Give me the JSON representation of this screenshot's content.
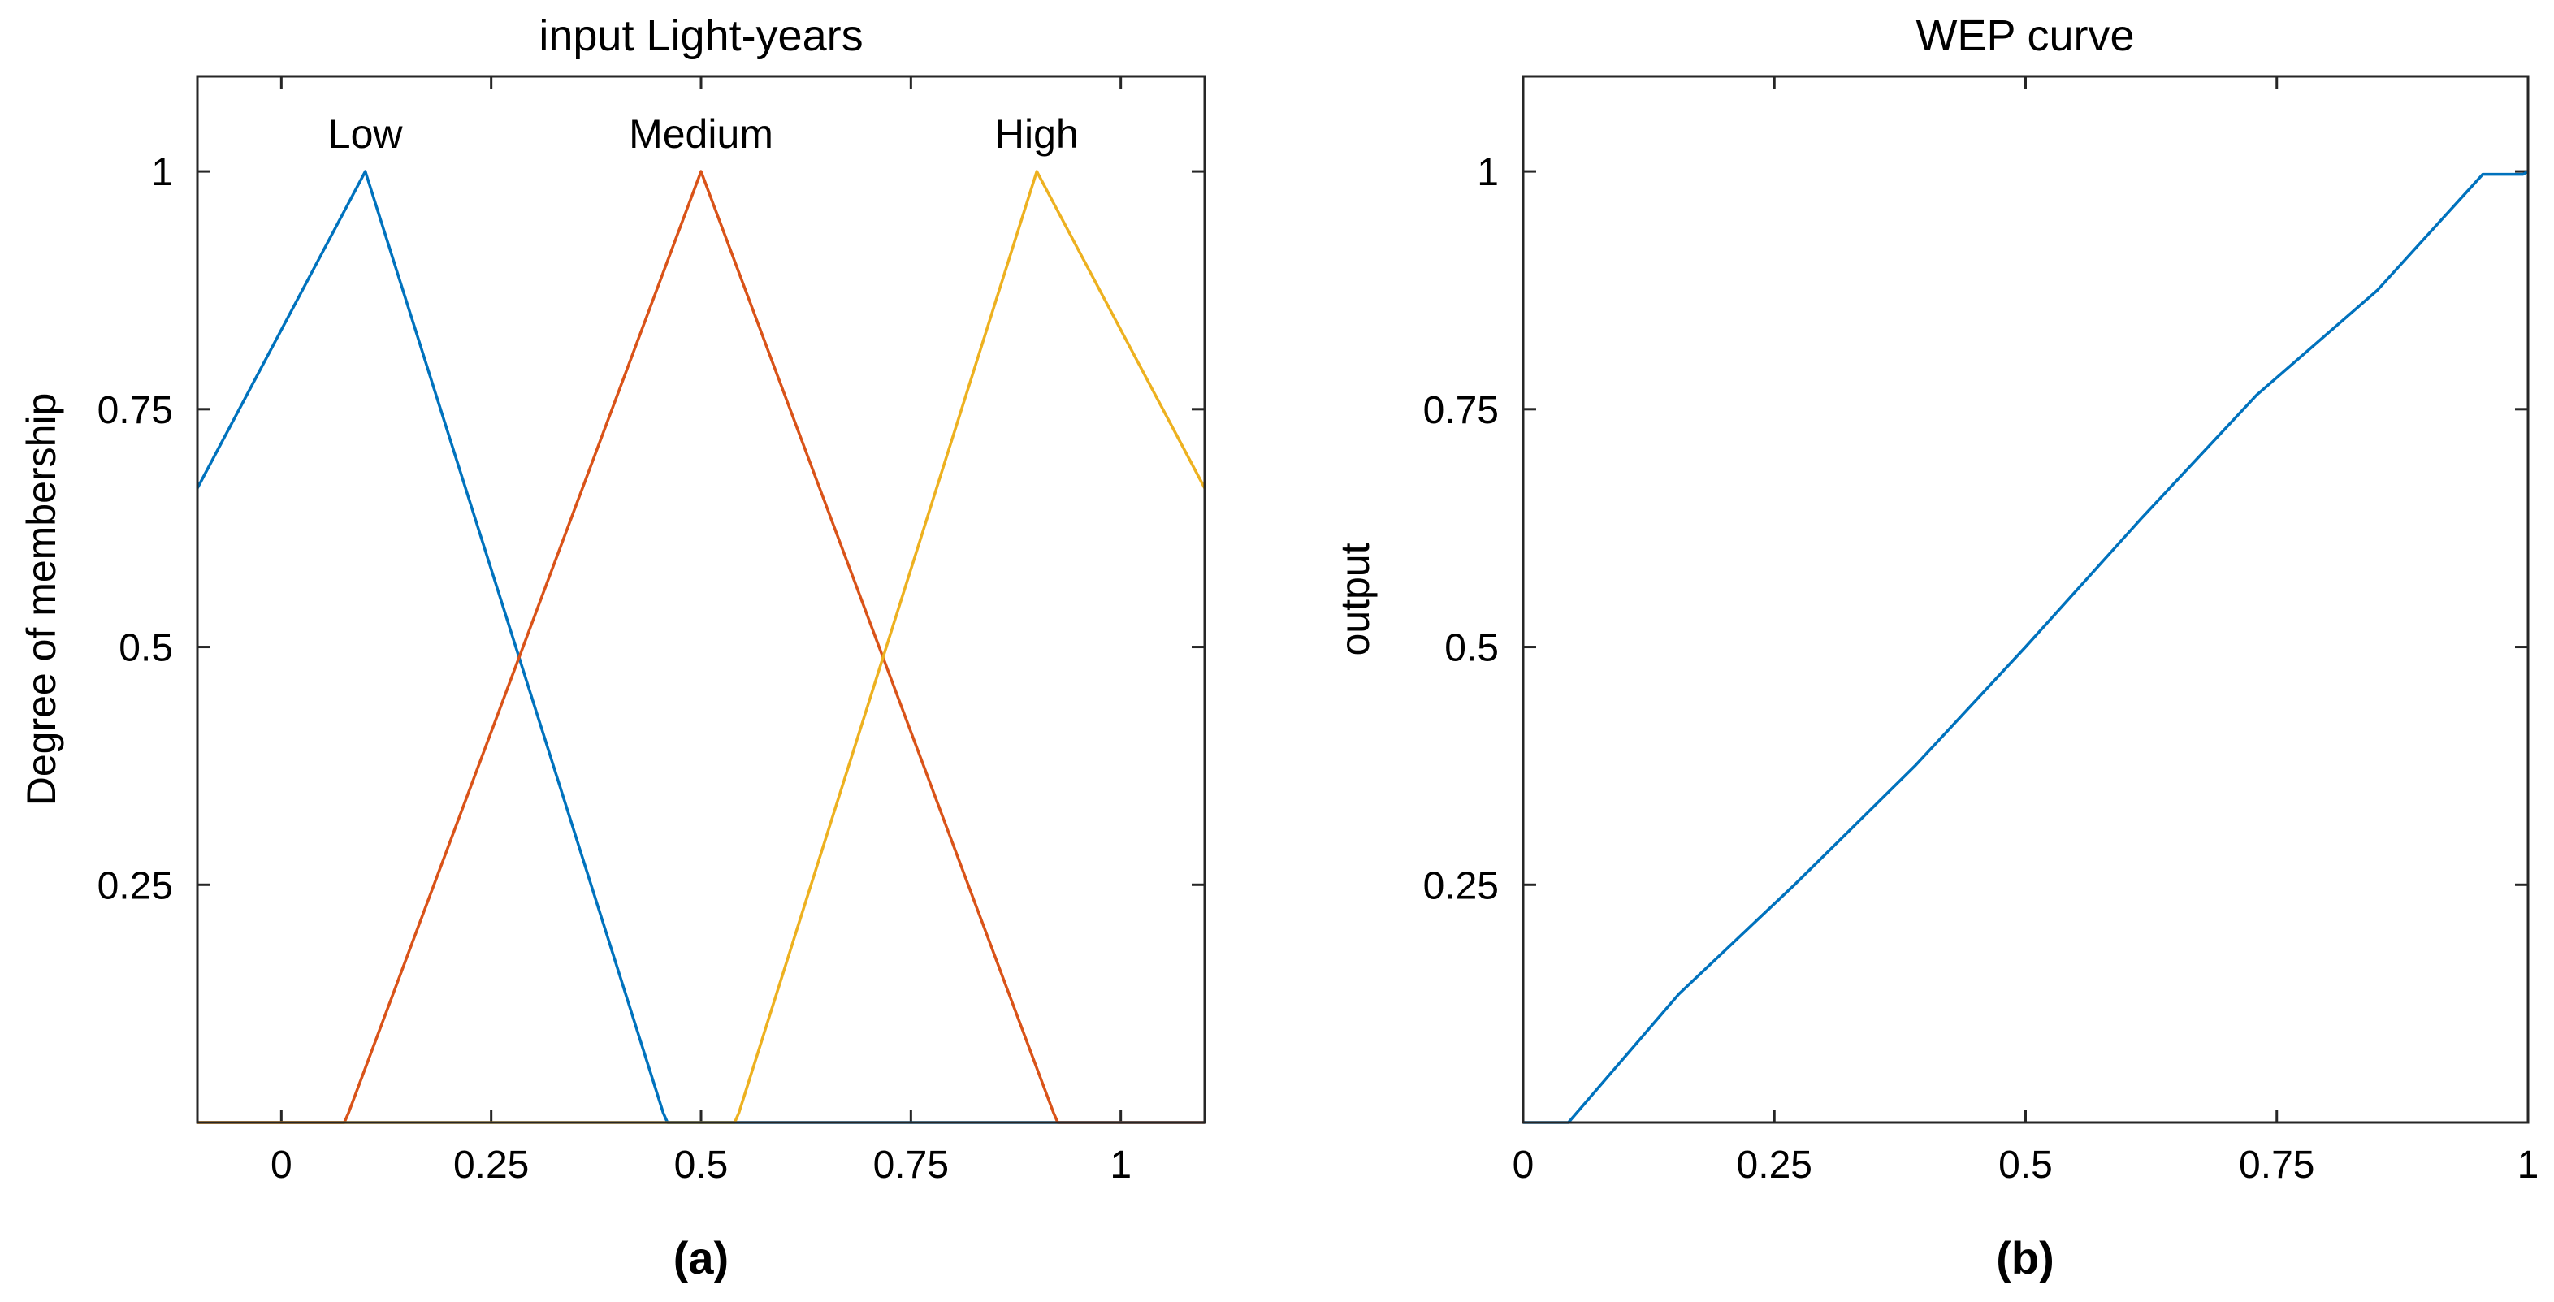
{
  "chart_data": [
    {
      "id": "a",
      "type": "line",
      "title": "input Light-years",
      "caption": "(a)",
      "xlabel": "",
      "ylabel": "Degree of membership",
      "xlim": [
        -0.1,
        1.1
      ],
      "ylim": [
        0,
        1.1
      ],
      "xticks": [
        0,
        0.25,
        0.5,
        0.75,
        1
      ],
      "xtick_labels": [
        "0",
        "0.25",
        "0.5",
        "0.75",
        "1"
      ],
      "yticks": [
        0.25,
        0.5,
        0.75,
        1
      ],
      "ytick_labels": [
        "0.25",
        "0.5",
        "0.75",
        "1"
      ],
      "series": [
        {
          "name": "Low",
          "color": "#0072BD",
          "label_x": 0.1,
          "label_y": 1.025,
          "points": [
            [
              -0.1,
              0.667
            ],
            [
              0.1,
              1
            ],
            [
              0.455,
              0.01
            ],
            [
              0.46,
              0
            ],
            [
              1.1,
              0
            ]
          ]
        },
        {
          "name": "Medium",
          "color": "#D95319",
          "label_x": 0.5,
          "label_y": 1.025,
          "points": [
            [
              -0.1,
              0
            ],
            [
              0.075,
              0
            ],
            [
              0.08,
              0.01
            ],
            [
              0.5,
              1
            ],
            [
              0.92,
              0.01
            ],
            [
              0.925,
              0
            ],
            [
              1.1,
              0
            ]
          ]
        },
        {
          "name": "High",
          "color": "#EDB120",
          "label_x": 0.9,
          "label_y": 1.025,
          "points": [
            [
              -0.1,
              0
            ],
            [
              0.54,
              0
            ],
            [
              0.545,
              0.01
            ],
            [
              0.9,
              1
            ],
            [
              1.1,
              0.667
            ]
          ]
        }
      ]
    },
    {
      "id": "b",
      "type": "line",
      "title": "WEP curve",
      "caption": "(b)",
      "xlabel": "",
      "ylabel": "output",
      "xlim": [
        0,
        1
      ],
      "ylim": [
        0,
        1.1
      ],
      "xticks": [
        0,
        0.25,
        0.5,
        0.75,
        1
      ],
      "xtick_labels": [
        "0",
        "0.25",
        "0.5",
        "0.75",
        "1"
      ],
      "yticks": [
        0.25,
        0.5,
        0.75,
        1
      ],
      "ytick_labels": [
        "0.25",
        "0.5",
        "0.75",
        "1"
      ],
      "series": [
        {
          "name": "output",
          "color": "#0072BD",
          "points": [
            [
              0,
              0
            ],
            [
              0.045,
              0
            ],
            [
              0.155,
              0.135
            ],
            [
              0.27,
              0.25
            ],
            [
              0.39,
              0.375
            ],
            [
              0.5,
              0.5
            ],
            [
              0.615,
              0.635
            ],
            [
              0.73,
              0.765
            ],
            [
              0.85,
              0.875
            ],
            [
              0.955,
              0.997
            ],
            [
              0.995,
              0.997
            ],
            [
              1,
              1
            ]
          ]
        }
      ]
    }
  ]
}
